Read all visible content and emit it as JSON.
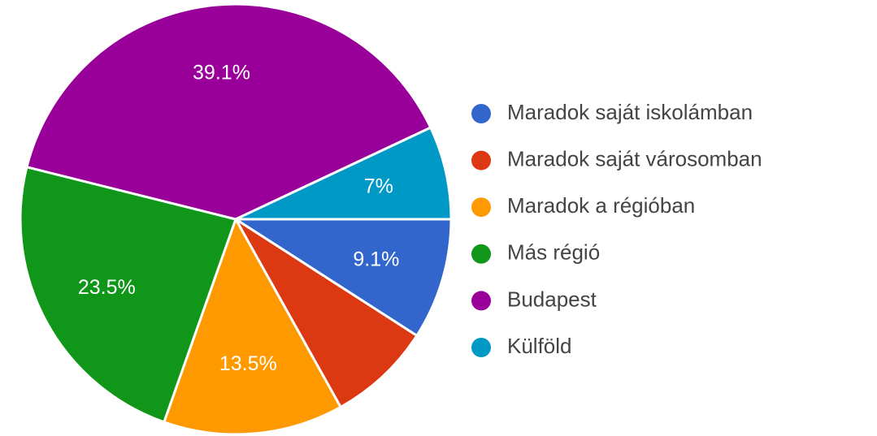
{
  "chart_data": {
    "type": "pie",
    "categories": [
      "Maradok saját iskolámban",
      "Maradok saját városomban",
      "Maradok a régióban",
      "Más régió",
      "Budapest",
      "Külföld"
    ],
    "values": [
      9.1,
      7.8,
      13.5,
      23.5,
      39.1,
      7
    ],
    "value_labels": [
      "9.1%",
      null,
      "13.5%",
      "23.5%",
      "39.1%",
      "7%"
    ],
    "colors": [
      "#3366cc",
      "#dc3912",
      "#ff9900",
      "#109618",
      "#990099",
      "#0099c6"
    ]
  }
}
